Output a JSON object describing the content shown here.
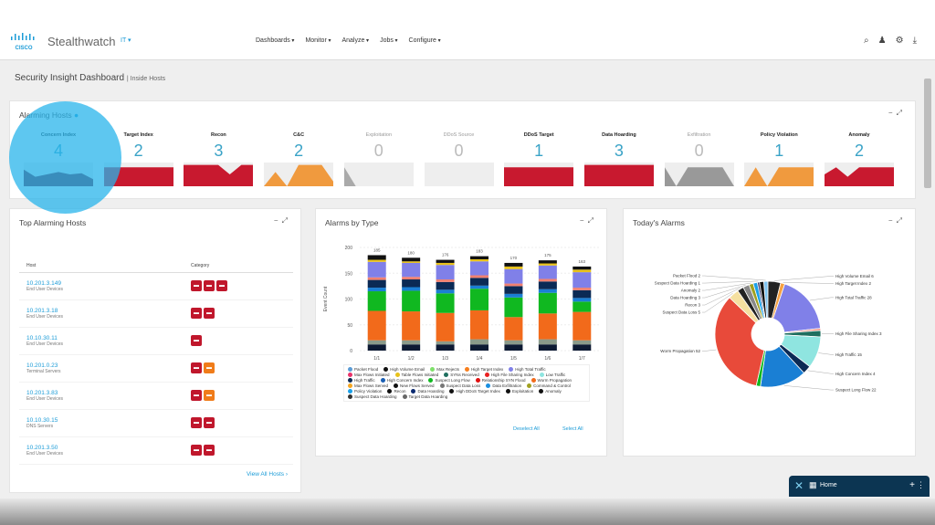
{
  "app": {
    "brand": "Stealthwatch",
    "badge": "IT ▾"
  },
  "nav": [
    "Dashboards",
    "Monitor",
    "Analyze",
    "Jobs",
    "Configure"
  ],
  "page": {
    "title": "Security Insight Dashboard",
    "subtitle": "| Inside Hosts"
  },
  "alarming_hosts": {
    "title": "Alarming Hosts",
    "tiles": [
      {
        "label": "Concern Index",
        "count": "4",
        "color": "#6b1a30",
        "trend": [
          0.7,
          0.4,
          0.5,
          0.6,
          0.5,
          0.55,
          0.3
        ]
      },
      {
        "label": "Target Index",
        "count": "2",
        "color": "#c8192f",
        "trend": [
          0.8,
          0.8,
          0.8,
          0.8,
          0.8,
          0.8,
          0.8
        ]
      },
      {
        "label": "Recon",
        "count": "3",
        "color": "#c8192f",
        "trend": [
          0.9,
          0.9,
          0.9,
          0.9,
          0.5,
          0.9,
          0.9
        ]
      },
      {
        "label": "C&C",
        "count": "2",
        "color": "#f09a3e",
        "trend": [
          0,
          0.6,
          0,
          0.9,
          0.9,
          0.9,
          0.2
        ]
      },
      {
        "label": "Exploitation",
        "count": "0",
        "color": "#aaaaaa",
        "trend": [
          0.8,
          0,
          0,
          0,
          0,
          0,
          0
        ]
      },
      {
        "label": "DDoS Source",
        "count": "0",
        "color": "#aaaaaa",
        "trend": [
          0,
          0,
          0,
          0,
          0,
          0,
          0
        ]
      },
      {
        "label": "DDoS Target",
        "count": "1",
        "color": "#c8192f",
        "trend": [
          0.8,
          0.8,
          0.8,
          0.8,
          0.8,
          0.8,
          0.8
        ]
      },
      {
        "label": "Data Hoarding",
        "count": "3",
        "color": "#c8192f",
        "trend": [
          0.9,
          0.9,
          0.9,
          0.9,
          0.9,
          0.9,
          0.9
        ]
      },
      {
        "label": "Exfiltration",
        "count": "0",
        "color": "#999999",
        "trend": [
          0.8,
          0,
          0.8,
          0.8,
          0.8,
          0.8,
          0
        ]
      },
      {
        "label": "Policy Violation",
        "count": "1",
        "color": "#f09a3e",
        "trend": [
          0,
          0.8,
          0,
          0.8,
          0.8,
          0.8,
          0.8
        ]
      },
      {
        "label": "Anomaly",
        "count": "2",
        "color": "#c8192f",
        "trend": [
          0.5,
          0.8,
          0.4,
          0.8,
          0.8,
          0.8,
          0.8
        ]
      }
    ]
  },
  "top_hosts": {
    "title": "Top Alarming Hosts",
    "col_host": "Host",
    "col_category": "Category",
    "view_all": "View All Hosts",
    "rows": [
      {
        "ip": "10.201.3.149",
        "group": "End User Devices",
        "badges": [
          "#c0172c",
          "#c0172c",
          "#c0172c"
        ]
      },
      {
        "ip": "10.201.3.18",
        "group": "End User Devices",
        "badges": [
          "#c0172c",
          "#c0172c"
        ]
      },
      {
        "ip": "10.10.30.11",
        "group": "End User Devices",
        "badges": [
          "#c0172c"
        ]
      },
      {
        "ip": "10.201.0.23",
        "group": "Terminal Servers",
        "badges": [
          "#c0172c",
          "#f07c1a"
        ]
      },
      {
        "ip": "10.201.3.83",
        "group": "End User Devices",
        "badges": [
          "#c0172c",
          "#f07c1a"
        ]
      },
      {
        "ip": "10.10.30.15",
        "group": "DNS Servers",
        "badges": [
          "#c0172c",
          "#c0172c"
        ]
      },
      {
        "ip": "10.201.3.50",
        "group": "End User Devices",
        "badges": [
          "#c0172c",
          "#c0172c"
        ]
      }
    ]
  },
  "alarms_by_type": {
    "title": "Alarms by Type",
    "deselect_all": "Deselect All",
    "select_all": "Select All",
    "legend": [
      {
        "name": "Packet Flood",
        "color": "#5b9bd5"
      },
      {
        "name": "High Volume Email",
        "color": "#111111"
      },
      {
        "name": "Max Rejects",
        "color": "#7ee06a"
      },
      {
        "name": "High Target Index",
        "color": "#f77f1e"
      },
      {
        "name": "High Total Traffic",
        "color": "#8080e8"
      },
      {
        "name": "Max Flows Initiated",
        "color": "#e8336a"
      },
      {
        "name": "Table Flows Initiated",
        "color": "#e8c21a"
      },
      {
        "name": "SYNs Received",
        "color": "#1f6f5f"
      },
      {
        "name": "High File Sharing Index",
        "color": "#e82020"
      },
      {
        "name": "Low Traffic",
        "color": "#8fe5e0"
      },
      {
        "name": "High Traffic",
        "color": "#0b2a55"
      },
      {
        "name": "High Concern Index",
        "color": "#1a5fb4"
      },
      {
        "name": "Suspect Long Flow",
        "color": "#10b820"
      },
      {
        "name": "Relationship SYN Flood",
        "color": "#e01010"
      },
      {
        "name": "Worm Propagation",
        "color": "#f26a1b"
      },
      {
        "name": "Max Flows Served",
        "color": "#f5a623"
      },
      {
        "name": "New Flows Served",
        "color": "#111111"
      },
      {
        "name": "Suspect Data Loss",
        "color": "#777777"
      },
      {
        "name": "Data Exfiltration",
        "color": "#1a8fe0"
      },
      {
        "name": "Command & Control",
        "color": "#a0a020"
      },
      {
        "name": "Policy Violation",
        "color": "#1aa0e8"
      },
      {
        "name": "Recon",
        "color": "#111111"
      },
      {
        "name": "Data Hoarding",
        "color": "#0b2a70"
      },
      {
        "name": "High DDoS Target Index",
        "color": "#111111"
      },
      {
        "name": "Exploitation",
        "color": "#111111"
      },
      {
        "name": "Anomaly",
        "color": "#111111"
      },
      {
        "name": "Suspect Data Hoarding",
        "color": "#333333"
      },
      {
        "name": "Target Data Hoarding",
        "color": "#666666"
      }
    ]
  },
  "chart_data": [
    {
      "type": "bar",
      "stacked": true,
      "ylabel": "Event Count",
      "ylim": [
        0,
        200
      ],
      "yticks": [
        0,
        50,
        100,
        150,
        200
      ],
      "grid": true,
      "categories": [
        "1/1",
        "1/2",
        "1/3",
        "1/4",
        "1/5",
        "1/6",
        "1/7"
      ],
      "totals": [
        185,
        180,
        176,
        183,
        170,
        175,
        163
      ],
      "series": [
        {
          "name": "Exploitation",
          "color": "#0d1a33",
          "values": [
            12,
            12,
            12,
            12,
            12,
            12,
            12
          ]
        },
        {
          "name": "Suspect Data Loss",
          "color": "#8a9a8a",
          "values": [
            8,
            8,
            6,
            10,
            8,
            10,
            8
          ]
        },
        {
          "name": "Worm Propagation",
          "color": "#f26a1b",
          "values": [
            57,
            56,
            55,
            56,
            45,
            50,
            55
          ]
        },
        {
          "name": "Suspect Long Flow",
          "color": "#10b820",
          "values": [
            38,
            40,
            38,
            42,
            38,
            40,
            20
          ]
        },
        {
          "name": "High Concern Index",
          "color": "#1a7fd4",
          "values": [
            7,
            7,
            7,
            6,
            7,
            7,
            7
          ]
        },
        {
          "name": "High Traffic",
          "color": "#0b2a55",
          "values": [
            15,
            15,
            15,
            15,
            15,
            15,
            15
          ]
        },
        {
          "name": "Max Flows Initiated",
          "color": "#f08070",
          "values": [
            5,
            5,
            5,
            5,
            5,
            5,
            5
          ]
        },
        {
          "name": "High Total Traffic",
          "color": "#8080e8",
          "values": [
            30,
            27,
            28,
            27,
            28,
            26,
            30
          ]
        },
        {
          "name": "Table Flows Initiated",
          "color": "#e8c21a",
          "values": [
            4,
            3,
            4,
            4,
            5,
            4,
            5
          ]
        },
        {
          "name": "High Volume Email",
          "color": "#111111",
          "values": [
            9,
            7,
            6,
            6,
            7,
            6,
            6
          ]
        }
      ]
    },
    {
      "type": "pie",
      "donut": true,
      "title": "Today's Alarms",
      "slices": [
        {
          "label": "Packet Flood",
          "value": 2,
          "color": "#7fc4f0",
          "show": true
        },
        {
          "label": "High Volume Email",
          "value": 6,
          "color": "#222222",
          "show": true
        },
        {
          "label": "High Target Index",
          "value": 2,
          "color": "#f5a040",
          "show": true
        },
        {
          "label": "High Total Traffic",
          "value": 28,
          "color": "#8080e8",
          "show": true
        },
        {
          "label": "",
          "value": 1,
          "color": "#f08070",
          "show": false
        },
        {
          "label": "High File Sharing Index",
          "value": 3,
          "color": "#1f6f5f",
          "show": true
        },
        {
          "label": "High Traffic",
          "value": 15,
          "color": "#8fe5e0",
          "show": true
        },
        {
          "label": "High Concern Index",
          "value": 4,
          "color": "#0b2a55",
          "show": true
        },
        {
          "label": "Suspect Long Flow",
          "value": 22,
          "color": "#1a7fd4",
          "show": true
        },
        {
          "label": "",
          "value": 2,
          "color": "#10b820",
          "show": false
        },
        {
          "label": "Worm Propagation",
          "value": 52,
          "color": "#e84a3a",
          "show": true
        },
        {
          "label": "Suspect Data Loss",
          "value": 5,
          "color": "#f5e0a0",
          "show": true
        },
        {
          "label": "Recon",
          "value": 3,
          "color": "#222222",
          "show": true
        },
        {
          "label": "Data Hoarding",
          "value": 3,
          "color": "#888888",
          "show": true
        },
        {
          "label": "Anomaly",
          "value": 2,
          "color": "#a0a020",
          "show": true
        },
        {
          "label": "",
          "value": 2,
          "color": "#1aa0e8",
          "show": false
        },
        {
          "label": "Suspect Data Hoarding",
          "value": 1,
          "color": "#333366",
          "show": true
        },
        {
          "label": "",
          "value": 2,
          "color": "#111111",
          "show": false
        }
      ]
    }
  ],
  "home_widget": {
    "label": "Home"
  }
}
